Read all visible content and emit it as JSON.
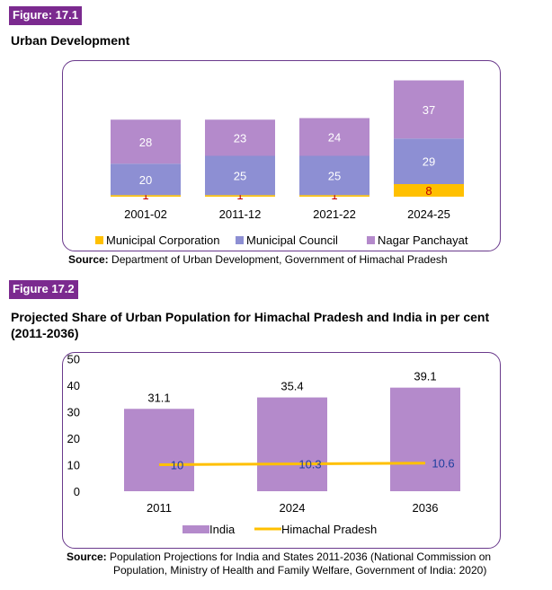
{
  "figure1": {
    "label": "Figure: 17.1",
    "title": "Urban Development",
    "source_label": "Source:",
    "source_text": "Department of Urban Development, Government of Himachal Pradesh"
  },
  "figure2": {
    "label": "Figure 17.2",
    "title_line1": "Projected Share of Urban Population for Himachal Pradesh and India in per cent",
    "title_line2": "(2011-2036)",
    "source_label": "Source:",
    "source_line1": "Population Projections for India and States 2011-2036 (National Commission on",
    "source_line2": "Population, Ministry of Health and Family Welfare, Government of India: 2020)"
  },
  "chart_data": [
    {
      "type": "bar",
      "stacked": true,
      "categories": [
        "2001-02",
        "2011-12",
        "2021-22",
        "2024-25"
      ],
      "series": [
        {
          "name": "Municipal Corporation",
          "values": [
            1,
            1,
            1,
            8
          ],
          "color": "#ffc000",
          "label_color": "#c00000"
        },
        {
          "name": "Municipal Council",
          "values": [
            20,
            25,
            25,
            29
          ],
          "color": "#8d8fd3",
          "label_color": "#ffffff"
        },
        {
          "name": "Nagar Panchayat",
          "values": [
            28,
            23,
            24,
            37
          ],
          "color": "#b48acb",
          "label_color": "#ffffff"
        }
      ],
      "legend": "bottom",
      "grid": false
    },
    {
      "type": "bar",
      "categories": [
        "2011",
        "2024",
        "2036"
      ],
      "series": [
        {
          "name": "India",
          "type": "bar",
          "values": [
            31.1,
            35.4,
            39.1
          ],
          "color": "#b48acb"
        },
        {
          "name": "Himachal Pradesh",
          "type": "line",
          "values": [
            10,
            10.3,
            10.6
          ],
          "color": "#ffc000",
          "label_color": "#1f3f9f"
        }
      ],
      "yticks": [
        0,
        10,
        20,
        30,
        40,
        50
      ],
      "ylim": [
        0,
        50
      ],
      "legend": "bottom",
      "grid": false
    }
  ]
}
